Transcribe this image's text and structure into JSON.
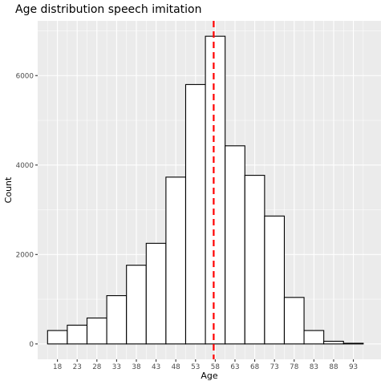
{
  "chart_data": {
    "type": "bar",
    "title": "Age distribution speech imitation",
    "xlabel": "Age",
    "ylabel": "Count",
    "bin_width": 5,
    "bin_start": 15.5,
    "values": [
      300,
      420,
      580,
      1080,
      1760,
      2250,
      3730,
      5800,
      6880,
      4430,
      3770,
      2860,
      1040,
      300,
      60,
      15
    ],
    "x_ticks": [
      18,
      23,
      28,
      33,
      38,
      43,
      48,
      53,
      58,
      63,
      68,
      73,
      78,
      83,
      88,
      93
    ],
    "y_ticks": [
      0,
      2000,
      4000,
      6000
    ],
    "xlim": [
      13,
      100
    ],
    "ylim": [
      -344,
      7224
    ],
    "vline": {
      "x": 57.6,
      "color": "#ff0000",
      "style": "dashed"
    },
    "colors": {
      "panel": "#ebebeb",
      "grid_major": "#ffffff",
      "bar_fill": "#ffffff",
      "bar_outline": "#000000"
    },
    "grid": true
  }
}
